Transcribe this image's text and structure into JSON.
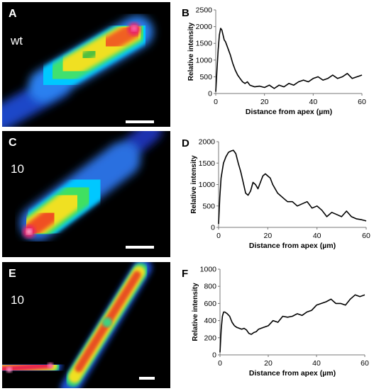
{
  "panels": {
    "a": {
      "label": "A",
      "condition": "wt"
    },
    "c": {
      "label": "C",
      "condition": "10"
    },
    "e": {
      "label": "E",
      "condition": "10"
    }
  },
  "chart_labels": {
    "b": "B",
    "d": "D",
    "f": "F"
  },
  "chart_data": [
    {
      "type": "line",
      "panel": "B",
      "xlabel": "Distance from apex (µm)",
      "ylabel": "Relative intensity",
      "xlim": [
        0,
        60
      ],
      "ylim": [
        0,
        2500
      ],
      "xticks": [
        0,
        20,
        40,
        60
      ],
      "yticks": [
        0,
        500,
        1000,
        1500,
        2000,
        2500
      ],
      "grid": false,
      "x": [
        0,
        0.5,
        1,
        1.5,
        2,
        2.5,
        3,
        3.5,
        4,
        5,
        6,
        7,
        8,
        9,
        10,
        11,
        12,
        13,
        14,
        16,
        18,
        20,
        22,
        24,
        26,
        28,
        30,
        32,
        34,
        36,
        38,
        40,
        42,
        44,
        46,
        48,
        50,
        52,
        54,
        56,
        58,
        60
      ],
      "y": [
        50,
        700,
        1300,
        1750,
        1950,
        1900,
        1750,
        1600,
        1550,
        1350,
        1150,
        900,
        700,
        550,
        450,
        350,
        300,
        350,
        250,
        200,
        220,
        180,
        250,
        150,
        250,
        200,
        300,
        250,
        350,
        400,
        350,
        450,
        500,
        400,
        450,
        550,
        450,
        500,
        600,
        450,
        500,
        550
      ]
    },
    {
      "type": "line",
      "panel": "D",
      "xlabel": "Distance from apex (µm)",
      "ylabel": "Relative intensity",
      "xlim": [
        0,
        60
      ],
      "ylim": [
        0,
        2000
      ],
      "xticks": [
        0,
        20,
        40,
        60
      ],
      "yticks": [
        0,
        500,
        1000,
        1500,
        2000
      ],
      "grid": false,
      "x": [
        0,
        0.5,
        1,
        2,
        3,
        4,
        5,
        6,
        7,
        8,
        9,
        10,
        11,
        12,
        13,
        14,
        15,
        16,
        17,
        18,
        19,
        20,
        21,
        22,
        24,
        26,
        28,
        30,
        32,
        34,
        36,
        38,
        40,
        42,
        44,
        46,
        48,
        50,
        52,
        54,
        56,
        58,
        60
      ],
      "y": [
        80,
        700,
        1150,
        1500,
        1650,
        1750,
        1780,
        1800,
        1720,
        1500,
        1300,
        1050,
        800,
        750,
        850,
        1050,
        1000,
        900,
        1050,
        1200,
        1250,
        1200,
        1150,
        1000,
        800,
        700,
        600,
        600,
        500,
        550,
        600,
        450,
        500,
        400,
        250,
        350,
        300,
        250,
        380,
        250,
        200,
        180,
        150
      ]
    },
    {
      "type": "line",
      "panel": "F",
      "xlabel": "Distance from apex (µm)",
      "ylabel": "Relative intensity",
      "xlim": [
        0,
        60
      ],
      "ylim": [
        0,
        1000
      ],
      "xticks": [
        0,
        20,
        40,
        60
      ],
      "yticks": [
        0,
        200,
        400,
        600,
        800,
        1000
      ],
      "grid": false,
      "x": [
        0,
        0.5,
        1,
        1.5,
        2,
        3,
        4,
        5,
        6,
        7,
        8,
        9,
        10,
        11,
        12,
        13,
        14,
        15,
        16,
        18,
        20,
        22,
        24,
        26,
        28,
        30,
        32,
        34,
        36,
        38,
        40,
        42,
        44,
        46,
        48,
        50,
        52,
        54,
        56,
        58,
        60
      ],
      "y": [
        30,
        300,
        450,
        500,
        500,
        480,
        450,
        380,
        340,
        320,
        310,
        300,
        310,
        290,
        250,
        240,
        260,
        270,
        300,
        320,
        340,
        400,
        380,
        450,
        440,
        450,
        480,
        460,
        500,
        520,
        580,
        600,
        620,
        650,
        600,
        600,
        580,
        650,
        700,
        680,
        700
      ]
    }
  ]
}
